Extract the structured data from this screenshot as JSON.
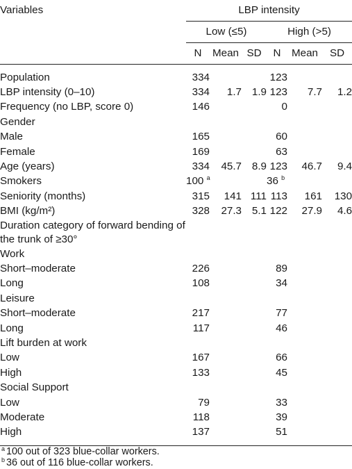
{
  "header": {
    "variables": "Variables",
    "group": "LBP intensity",
    "low": "Low (≤5)",
    "high": "High (>5)",
    "n": "N",
    "mean": "Mean",
    "sd": "SD"
  },
  "rows": [
    {
      "label": "Population",
      "low_n": "334",
      "high_n": "123"
    },
    {
      "label": "LBP intensity (0–10)",
      "low_n": "334",
      "low_mean": "1.7",
      "low_sd": "1.9",
      "high_n": "123",
      "high_mean": "7.7",
      "high_sd": "1.2"
    },
    {
      "label": "Frequency (no LBP, score 0)",
      "low_n": "146",
      "high_n": "0"
    },
    {
      "label": "Gender"
    },
    {
      "label": "Male",
      "low_n": "165",
      "high_n": "60"
    },
    {
      "label": "Female",
      "low_n": "169",
      "high_n": "63"
    },
    {
      "label": "Age (years)",
      "low_n": "334",
      "low_mean": "45.7",
      "low_sd": "8.9",
      "high_n": "123",
      "high_mean": "46.7",
      "high_sd": "9.4"
    },
    {
      "label": "Smokers",
      "low_n": "100",
      "low_n_sup": "a",
      "high_n": "36",
      "high_n_sup": "b"
    },
    {
      "label": "Seniority (months)",
      "low_n": "315",
      "low_mean": "141",
      "low_sd": "111",
      "high_n": "113",
      "high_mean": "161",
      "high_sd": "130"
    },
    {
      "label": "BMI (kg/m²)",
      "low_n": "328",
      "low_mean": "27.3",
      "low_sd": "5.1",
      "high_n": "122",
      "high_mean": "27.9",
      "high_sd": "4.6"
    },
    {
      "label": "Duration category of forward bending of the trunk of ≥30°"
    },
    {
      "label": "Work"
    },
    {
      "label": "Short–moderate",
      "low_n": "226",
      "high_n": "89"
    },
    {
      "label": "Long",
      "low_n": "108",
      "high_n": "34"
    },
    {
      "label": "Leisure"
    },
    {
      "label": "Short–moderate",
      "low_n": "217",
      "high_n": "77"
    },
    {
      "label": "Long",
      "low_n": "117",
      "high_n": "46"
    },
    {
      "label": "Lift burden at work"
    },
    {
      "label": "Low",
      "low_n": "167",
      "high_n": "66"
    },
    {
      "label": "High",
      "low_n": "133",
      "high_n": "45"
    },
    {
      "label": "Social Support"
    },
    {
      "label": "Low",
      "low_n": "79",
      "high_n": "33"
    },
    {
      "label": "Moderate",
      "low_n": "118",
      "high_n": "39"
    },
    {
      "label": "High",
      "low_n": "137",
      "high_n": "51"
    }
  ],
  "footnotes": {
    "a_mark": "a",
    "a_text": "100 out of 323 blue-collar workers.",
    "b_mark": "b",
    "b_text": "36 out of 116 blue-collar workers."
  }
}
